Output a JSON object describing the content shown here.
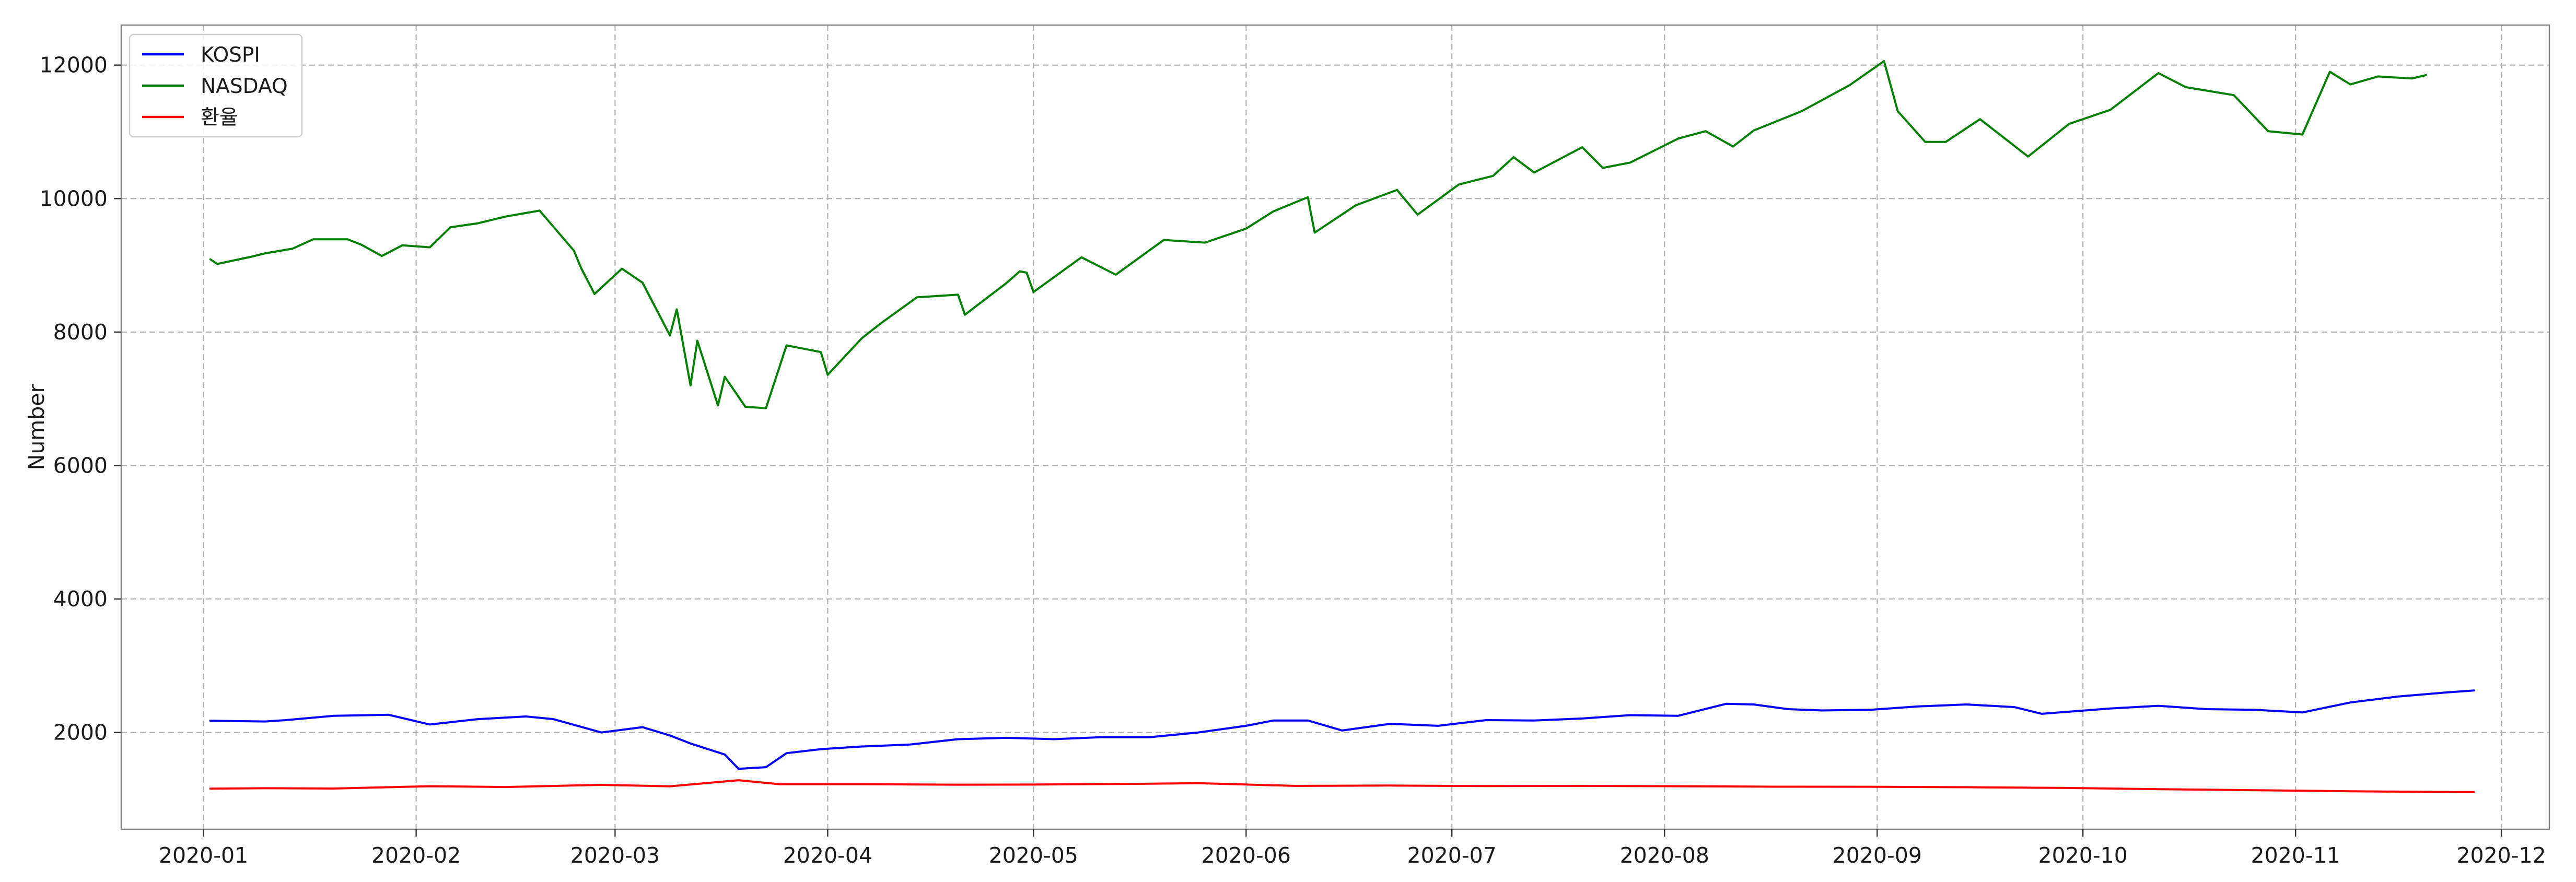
{
  "chart_data": {
    "type": "line",
    "title": "",
    "xlabel": "",
    "ylabel": "Number",
    "ylim": [
      550,
      12600
    ],
    "xlim": [
      "2019-12-20",
      "2020-12-08"
    ],
    "grid": true,
    "legend_position": "top-left",
    "xticks": [
      "2020-01",
      "2020-02",
      "2020-03",
      "2020-04",
      "2020-05",
      "2020-06",
      "2020-07",
      "2020-08",
      "2020-09",
      "2020-10",
      "2020-11",
      "2020-12"
    ],
    "yticks": [
      2000,
      4000,
      6000,
      8000,
      10000,
      12000
    ],
    "series": [
      {
        "name": "KOSPI",
        "color": "#0000ff",
        "points": [
          [
            "2020-01-02",
            2175
          ],
          [
            "2020-01-10",
            2165
          ],
          [
            "2020-01-13",
            2185
          ],
          [
            "2020-01-20",
            2250
          ],
          [
            "2020-01-28",
            2265
          ],
          [
            "2020-02-03",
            2120
          ],
          [
            "2020-02-10",
            2200
          ],
          [
            "2020-02-17",
            2240
          ],
          [
            "2020-02-21",
            2200
          ],
          [
            "2020-02-28",
            2000
          ],
          [
            "2020-03-05",
            2080
          ],
          [
            "2020-03-09",
            1955
          ],
          [
            "2020-03-12",
            1835
          ],
          [
            "2020-03-17",
            1670
          ],
          [
            "2020-03-19",
            1455
          ],
          [
            "2020-03-23",
            1480
          ],
          [
            "2020-03-26",
            1690
          ],
          [
            "2020-03-31",
            1750
          ],
          [
            "2020-04-06",
            1790
          ],
          [
            "2020-04-13",
            1820
          ],
          [
            "2020-04-20",
            1900
          ],
          [
            "2020-04-27",
            1920
          ],
          [
            "2020-05-04",
            1900
          ],
          [
            "2020-05-11",
            1930
          ],
          [
            "2020-05-18",
            1930
          ],
          [
            "2020-05-25",
            2000
          ],
          [
            "2020-06-01",
            2100
          ],
          [
            "2020-06-05",
            2180
          ],
          [
            "2020-06-10",
            2180
          ],
          [
            "2020-06-15",
            2030
          ],
          [
            "2020-06-22",
            2130
          ],
          [
            "2020-06-29",
            2100
          ],
          [
            "2020-07-06",
            2185
          ],
          [
            "2020-07-13",
            2180
          ],
          [
            "2020-07-20",
            2210
          ],
          [
            "2020-07-27",
            2260
          ],
          [
            "2020-08-03",
            2250
          ],
          [
            "2020-08-10",
            2430
          ],
          [
            "2020-08-14",
            2420
          ],
          [
            "2020-08-19",
            2350
          ],
          [
            "2020-08-24",
            2330
          ],
          [
            "2020-08-31",
            2340
          ],
          [
            "2020-09-07",
            2390
          ],
          [
            "2020-09-14",
            2420
          ],
          [
            "2020-09-21",
            2380
          ],
          [
            "2020-09-25",
            2280
          ],
          [
            "2020-10-05",
            2360
          ],
          [
            "2020-10-12",
            2400
          ],
          [
            "2020-10-19",
            2350
          ],
          [
            "2020-10-26",
            2340
          ],
          [
            "2020-11-02",
            2300
          ],
          [
            "2020-11-09",
            2450
          ],
          [
            "2020-11-16",
            2540
          ],
          [
            "2020-11-23",
            2600
          ],
          [
            "2020-11-27",
            2630
          ]
        ]
      },
      {
        "name": "NASDAQ",
        "color": "#008000",
        "points": [
          [
            "2020-01-02",
            9090
          ],
          [
            "2020-01-03",
            9020
          ],
          [
            "2020-01-08",
            9130
          ],
          [
            "2020-01-10",
            9180
          ],
          [
            "2020-01-14",
            9250
          ],
          [
            "2020-01-17",
            9390
          ],
          [
            "2020-01-22",
            9390
          ],
          [
            "2020-01-24",
            9310
          ],
          [
            "2020-01-27",
            9140
          ],
          [
            "2020-01-30",
            9300
          ],
          [
            "2020-02-03",
            9270
          ],
          [
            "2020-02-06",
            9570
          ],
          [
            "2020-02-10",
            9630
          ],
          [
            "2020-02-14",
            9730
          ],
          [
            "2020-02-19",
            9820
          ],
          [
            "2020-02-21",
            9580
          ],
          [
            "2020-02-24",
            9220
          ],
          [
            "2020-02-25",
            8970
          ],
          [
            "2020-02-27",
            8570
          ],
          [
            "2020-03-02",
            8950
          ],
          [
            "2020-03-05",
            8740
          ],
          [
            "2020-03-09",
            7950
          ],
          [
            "2020-03-10",
            8340
          ],
          [
            "2020-03-12",
            7200
          ],
          [
            "2020-03-13",
            7870
          ],
          [
            "2020-03-16",
            6900
          ],
          [
            "2020-03-17",
            7330
          ],
          [
            "2020-03-20",
            6880
          ],
          [
            "2020-03-23",
            6860
          ],
          [
            "2020-03-26",
            7800
          ],
          [
            "2020-03-31",
            7700
          ],
          [
            "2020-04-01",
            7360
          ],
          [
            "2020-04-06",
            7910
          ],
          [
            "2020-04-09",
            8150
          ],
          [
            "2020-04-14",
            8520
          ],
          [
            "2020-04-20",
            8560
          ],
          [
            "2020-04-21",
            8260
          ],
          [
            "2020-04-27",
            8730
          ],
          [
            "2020-04-29",
            8910
          ],
          [
            "2020-04-30",
            8890
          ],
          [
            "2020-05-01",
            8600
          ],
          [
            "2020-05-08",
            9120
          ],
          [
            "2020-05-13",
            8860
          ],
          [
            "2020-05-20",
            9380
          ],
          [
            "2020-05-26",
            9340
          ],
          [
            "2020-06-01",
            9550
          ],
          [
            "2020-06-05",
            9810
          ],
          [
            "2020-06-10",
            10020
          ],
          [
            "2020-06-11",
            9490
          ],
          [
            "2020-06-17",
            9900
          ],
          [
            "2020-06-23",
            10130
          ],
          [
            "2020-06-26",
            9760
          ],
          [
            "2020-07-02",
            10210
          ],
          [
            "2020-07-07",
            10340
          ],
          [
            "2020-07-10",
            10620
          ],
          [
            "2020-07-13",
            10390
          ],
          [
            "2020-07-20",
            10770
          ],
          [
            "2020-07-23",
            10460
          ],
          [
            "2020-07-27",
            10540
          ],
          [
            "2020-08-03",
            10900
          ],
          [
            "2020-08-07",
            11010
          ],
          [
            "2020-08-11",
            10780
          ],
          [
            "2020-08-14",
            11020
          ],
          [
            "2020-08-21",
            11310
          ],
          [
            "2020-08-28",
            11700
          ],
          [
            "2020-09-02",
            12060
          ],
          [
            "2020-09-04",
            11310
          ],
          [
            "2020-09-08",
            10850
          ],
          [
            "2020-09-11",
            10850
          ],
          [
            "2020-09-16",
            11190
          ],
          [
            "2020-09-23",
            10630
          ],
          [
            "2020-09-29",
            11120
          ],
          [
            "2020-10-05",
            11330
          ],
          [
            "2020-10-12",
            11880
          ],
          [
            "2020-10-16",
            11670
          ],
          [
            "2020-10-23",
            11550
          ],
          [
            "2020-10-28",
            11010
          ],
          [
            "2020-11-02",
            10960
          ],
          [
            "2020-11-06",
            11900
          ],
          [
            "2020-11-09",
            11710
          ],
          [
            "2020-11-13",
            11830
          ],
          [
            "2020-11-18",
            11800
          ],
          [
            "2020-11-20",
            11850
          ]
        ]
      },
      {
        "name": "환율",
        "color": "#ff0000",
        "points": [
          [
            "2020-01-02",
            1158
          ],
          [
            "2020-01-10",
            1165
          ],
          [
            "2020-01-20",
            1160
          ],
          [
            "2020-02-03",
            1195
          ],
          [
            "2020-02-14",
            1183
          ],
          [
            "2020-02-28",
            1215
          ],
          [
            "2020-03-09",
            1194
          ],
          [
            "2020-03-19",
            1285
          ],
          [
            "2020-03-25",
            1225
          ],
          [
            "2020-04-06",
            1225
          ],
          [
            "2020-04-20",
            1218
          ],
          [
            "2020-05-01",
            1220
          ],
          [
            "2020-05-15",
            1230
          ],
          [
            "2020-05-25",
            1240
          ],
          [
            "2020-06-08",
            1200
          ],
          [
            "2020-06-22",
            1205
          ],
          [
            "2020-07-06",
            1197
          ],
          [
            "2020-07-20",
            1200
          ],
          [
            "2020-08-03",
            1195
          ],
          [
            "2020-08-17",
            1188
          ],
          [
            "2020-08-31",
            1187
          ],
          [
            "2020-09-14",
            1180
          ],
          [
            "2020-09-28",
            1170
          ],
          [
            "2020-10-12",
            1150
          ],
          [
            "2020-10-26",
            1135
          ],
          [
            "2020-11-09",
            1120
          ],
          [
            "2020-11-20",
            1110
          ],
          [
            "2020-11-27",
            1106
          ]
        ]
      }
    ]
  }
}
